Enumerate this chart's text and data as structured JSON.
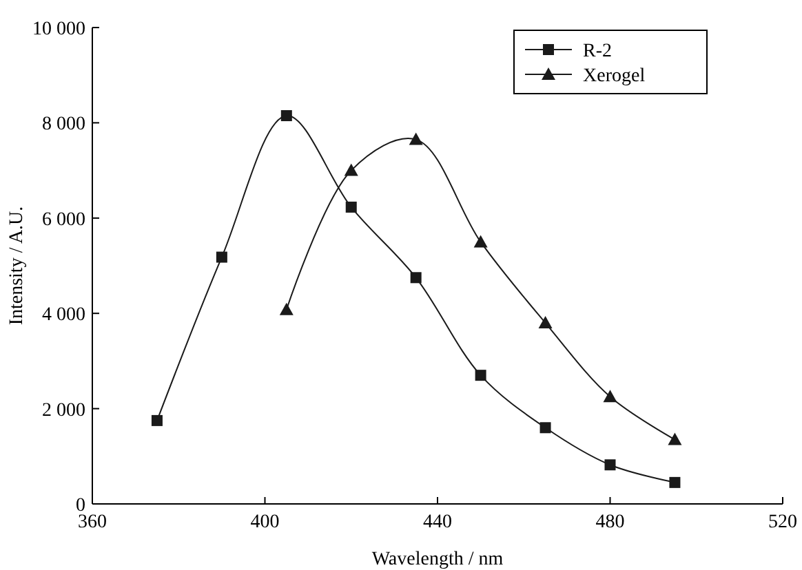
{
  "chart_data": {
    "type": "line",
    "xlabel": "Wavelength / nm",
    "ylabel": "Intensity / A.U.",
    "xlim": [
      360,
      520
    ],
    "xticks": [
      360,
      400,
      440,
      480,
      520
    ],
    "ylim": [
      0,
      10000
    ],
    "yticks": [
      0,
      {
        "value": 2000,
        "label": "2 000"
      },
      {
        "value": 4000,
        "label": "4 000"
      },
      {
        "value": 6000,
        "label": "6 000"
      },
      {
        "value": 8000,
        "label": "8 000"
      },
      {
        "value": 10000,
        "label": "10 000"
      }
    ],
    "legend": "top right",
    "grid": false,
    "line_style": "solid",
    "series": [
      {
        "name": "R-2",
        "color": "#1a1a1a",
        "marker": "square",
        "x": [
          375,
          390,
          405,
          420,
          435,
          450,
          465,
          480,
          495
        ],
        "values": [
          1750,
          5180,
          8150,
          6230,
          4750,
          2700,
          1600,
          820,
          450
        ]
      },
      {
        "name": "Xerogel",
        "color": "#1a1a1a",
        "marker": "triangle",
        "x": [
          405,
          420,
          435,
          450,
          465,
          480,
          495
        ],
        "values": [
          4080,
          7000,
          7650,
          5500,
          3800,
          2250,
          1350
        ]
      }
    ]
  }
}
